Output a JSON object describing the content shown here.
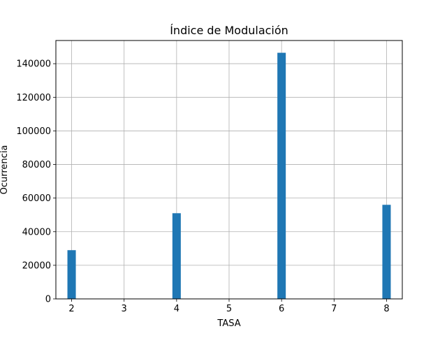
{
  "chart_data": {
    "type": "bar",
    "title": "Índice de Modulación",
    "xlabel": "TASA",
    "ylabel": "Ocurrencia",
    "x": [
      2,
      4,
      6,
      8
    ],
    "values": [
      29000,
      51000,
      146500,
      56000
    ],
    "xlim": [
      1.7,
      8.3
    ],
    "ylim": [
      0,
      153800
    ],
    "xticks": [
      2,
      3,
      4,
      5,
      6,
      7,
      8
    ],
    "yticks": [
      0,
      20000,
      40000,
      60000,
      80000,
      100000,
      120000,
      140000
    ],
    "bin_width": 0.2,
    "grid": true,
    "colors": {
      "bar": "#1f77b4",
      "grid": "#b0b0b0",
      "axis": "#000000"
    }
  }
}
